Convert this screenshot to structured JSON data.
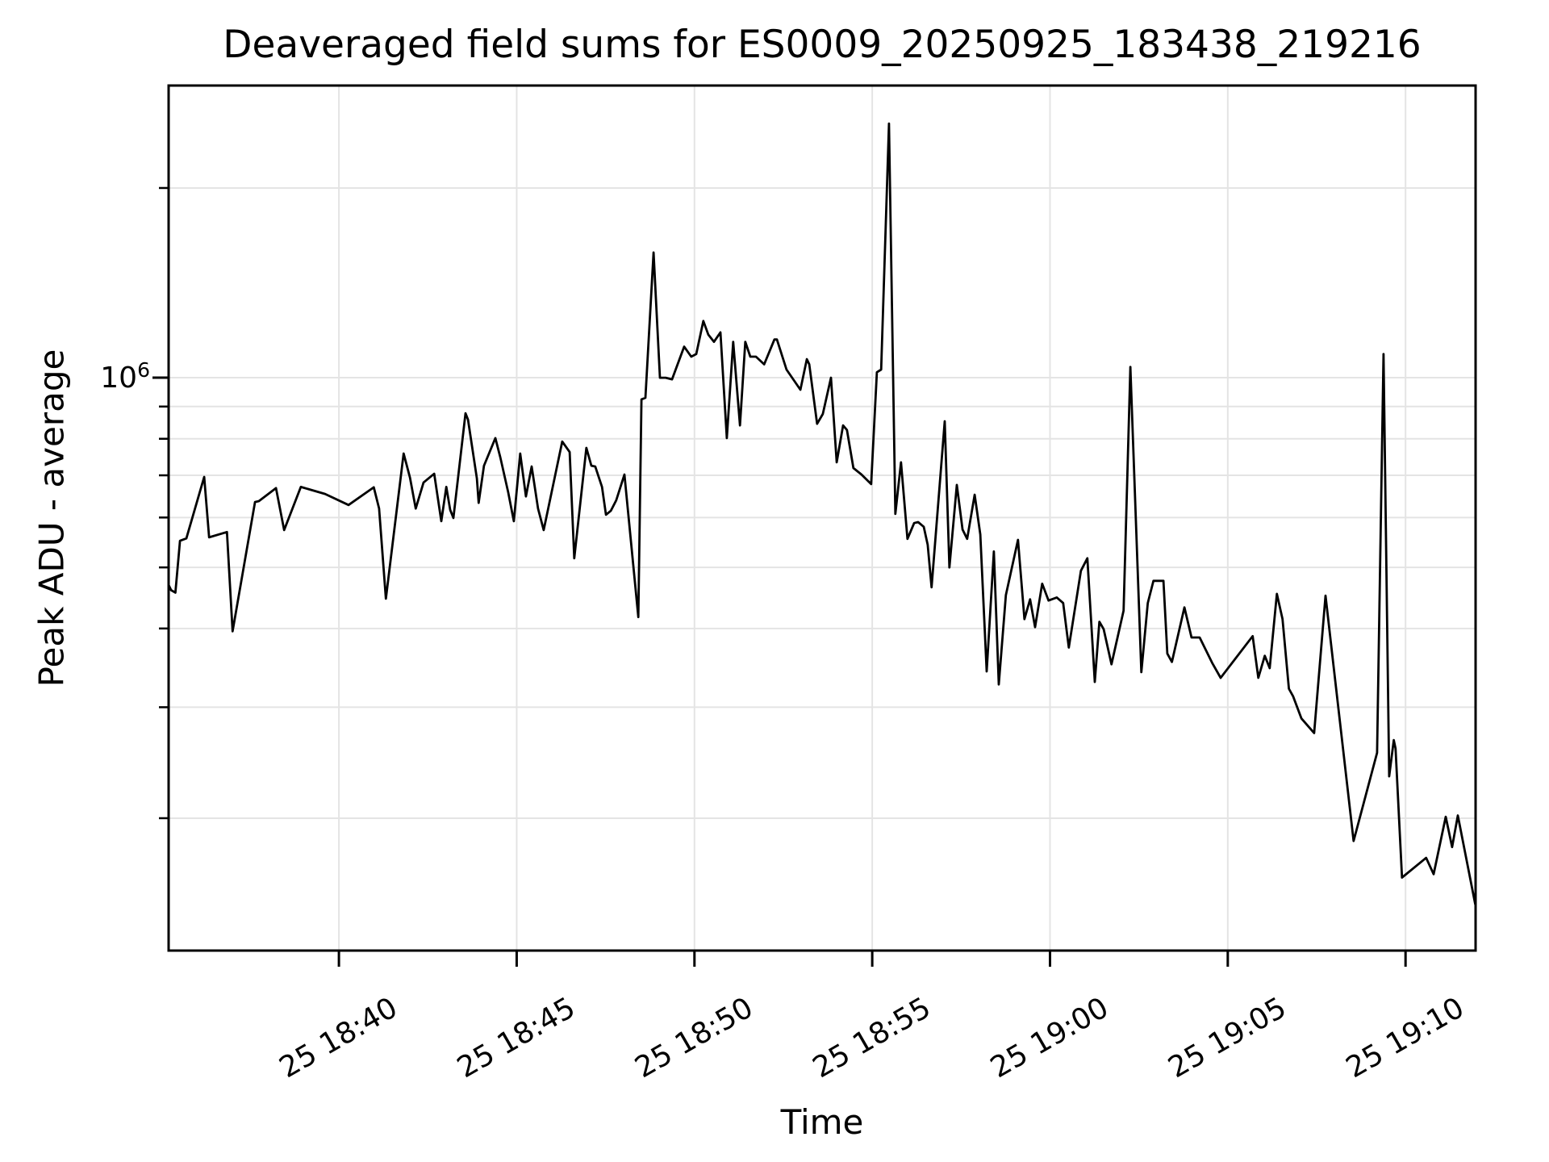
{
  "title": "Deaveraged field sums for ES0009_20250925_183438_219216",
  "axes": {
    "xlabel": "Time",
    "ylabel": "Peak ADU - average",
    "x_unit": "minutes after 2025-09-25 18:35:00",
    "xlim": [
      0.21,
      36.97
    ],
    "y_scale": "log",
    "ylim": [
      123300,
      2908000
    ],
    "x_ticks": [
      {
        "t": 5,
        "label": "25 18:40"
      },
      {
        "t": 10,
        "label": "25 18:45"
      },
      {
        "t": 15,
        "label": "25 18:50"
      },
      {
        "t": 20,
        "label": "25 18:55"
      },
      {
        "t": 25,
        "label": "25 19:00"
      },
      {
        "t": 30,
        "label": "25 19:05"
      },
      {
        "t": 35,
        "label": "25 19:10"
      }
    ],
    "y_major_tick": {
      "value": 1000000,
      "base": "10",
      "exp": "6"
    },
    "y_minor_ticks": [
      200000,
      300000,
      400000,
      500000,
      600000,
      700000,
      800000,
      900000,
      2000000
    ],
    "grid": "both"
  },
  "colors": {
    "line": "#000000",
    "grid": "#e4e4e4",
    "spine": "#000000",
    "background": "#ffffff"
  },
  "chart_data": {
    "type": "line",
    "title": "Deaveraged field sums for ES0009_20250925_183438_219216",
    "xlabel": "Time",
    "ylabel": "Peak ADU - average",
    "x_unit": "minutes after 2025-09-25 18:35:00",
    "y_scale": "log",
    "xlim": [
      0.21,
      36.97
    ],
    "ylim": [
      123300,
      2908000
    ],
    "legend": "none",
    "series": [
      {
        "name": "Peak ADU - average",
        "color": "#000000",
        "points": [
          [
            0.21,
            469000
          ],
          [
            0.28,
            460000
          ],
          [
            0.4,
            456000
          ],
          [
            0.53,
            551000
          ],
          [
            0.71,
            556000
          ],
          [
            1.21,
            696000
          ],
          [
            1.35,
            558000
          ],
          [
            1.85,
            569000
          ],
          [
            2.01,
            396000
          ],
          [
            2.64,
            635000
          ],
          [
            2.75,
            637000
          ],
          [
            3.23,
            668000
          ],
          [
            3.46,
            573000
          ],
          [
            3.93,
            671000
          ],
          [
            4.61,
            654000
          ],
          [
            5.27,
            628000
          ],
          [
            5.98,
            670000
          ],
          [
            6.13,
            620000
          ],
          [
            6.32,
            446000
          ],
          [
            6.82,
            758000
          ],
          [
            7.0,
            694000
          ],
          [
            7.16,
            620000
          ],
          [
            7.38,
            682000
          ],
          [
            7.68,
            704000
          ],
          [
            7.88,
            592000
          ],
          [
            8.02,
            671000
          ],
          [
            8.13,
            617000
          ],
          [
            8.22,
            599000
          ],
          [
            8.56,
            878000
          ],
          [
            8.63,
            858000
          ],
          [
            8.88,
            692000
          ],
          [
            8.93,
            633000
          ],
          [
            9.08,
            725000
          ],
          [
            9.4,
            802000
          ],
          [
            9.54,
            747000
          ],
          [
            9.76,
            658000
          ],
          [
            9.92,
            592000
          ],
          [
            10.1,
            758000
          ],
          [
            10.26,
            648000
          ],
          [
            10.42,
            723000
          ],
          [
            10.6,
            620000
          ],
          [
            10.76,
            573000
          ],
          [
            11.28,
            792000
          ],
          [
            11.49,
            762000
          ],
          [
            11.62,
            517000
          ],
          [
            11.96,
            774000
          ],
          [
            12.1,
            725000
          ],
          [
            12.21,
            723000
          ],
          [
            12.4,
            671000
          ],
          [
            12.51,
            606000
          ],
          [
            12.65,
            615000
          ],
          [
            12.8,
            639000
          ],
          [
            13.03,
            702000
          ],
          [
            13.42,
            417000
          ],
          [
            13.51,
            924000
          ],
          [
            13.62,
            929000
          ],
          [
            13.85,
            1580000
          ],
          [
            14.03,
            1000000
          ],
          [
            14.19,
            1000000
          ],
          [
            14.37,
            994000
          ],
          [
            14.71,
            1120000
          ],
          [
            14.76,
            1110000
          ],
          [
            14.91,
            1080000
          ],
          [
            15.05,
            1090000
          ],
          [
            15.25,
            1230000
          ],
          [
            15.39,
            1170000
          ],
          [
            15.55,
            1140000
          ],
          [
            15.73,
            1180000
          ],
          [
            15.91,
            802000
          ],
          [
            16.09,
            1140000
          ],
          [
            16.28,
            840000
          ],
          [
            16.43,
            1140000
          ],
          [
            16.57,
            1080000
          ],
          [
            16.73,
            1080000
          ],
          [
            16.96,
            1050000
          ],
          [
            17.25,
            1150000
          ],
          [
            17.32,
            1150000
          ],
          [
            17.59,
            1030000
          ],
          [
            17.98,
            957000
          ],
          [
            18.16,
            1070000
          ],
          [
            18.23,
            1050000
          ],
          [
            18.45,
            845000
          ],
          [
            18.61,
            876000
          ],
          [
            18.84,
            1000000
          ],
          [
            19.0,
            734000
          ],
          [
            19.18,
            840000
          ],
          [
            19.29,
            826000
          ],
          [
            19.47,
            719000
          ],
          [
            19.7,
            702000
          ],
          [
            19.97,
            678000
          ],
          [
            20.13,
            1020000
          ],
          [
            20.25,
            1030000
          ],
          [
            20.47,
            2530000
          ],
          [
            20.65,
            608000
          ],
          [
            20.81,
            734000
          ],
          [
            20.99,
            555000
          ],
          [
            21.18,
            588000
          ],
          [
            21.29,
            590000
          ],
          [
            21.45,
            580000
          ],
          [
            21.56,
            543000
          ],
          [
            21.67,
            465000
          ],
          [
            22.04,
            853000
          ],
          [
            22.17,
            500000
          ],
          [
            22.38,
            676000
          ],
          [
            22.54,
            574000
          ],
          [
            22.67,
            555000
          ],
          [
            22.88,
            652000
          ],
          [
            23.04,
            564000
          ],
          [
            23.22,
            342000
          ],
          [
            23.42,
            530000
          ],
          [
            23.56,
            326000
          ],
          [
            23.76,
            452000
          ],
          [
            24.1,
            553000
          ],
          [
            24.28,
            414000
          ],
          [
            24.44,
            445000
          ],
          [
            24.58,
            402000
          ],
          [
            24.78,
            471000
          ],
          [
            24.96,
            443000
          ],
          [
            25.19,
            448000
          ],
          [
            25.37,
            439000
          ],
          [
            25.53,
            373000
          ],
          [
            25.87,
            494000
          ],
          [
            26.05,
            517000
          ],
          [
            26.26,
            329000
          ],
          [
            26.39,
            410000
          ],
          [
            26.51,
            399000
          ],
          [
            26.73,
            351000
          ],
          [
            27.07,
            427000
          ],
          [
            27.26,
            1040000
          ],
          [
            27.57,
            341000
          ],
          [
            27.75,
            439000
          ],
          [
            27.91,
            476000
          ],
          [
            28.19,
            476000
          ],
          [
            28.3,
            365000
          ],
          [
            28.43,
            354000
          ],
          [
            28.78,
            432000
          ],
          [
            28.98,
            387000
          ],
          [
            29.21,
            387000
          ],
          [
            29.57,
            352000
          ],
          [
            29.8,
            334000
          ],
          [
            30.7,
            389000
          ],
          [
            30.86,
            334000
          ],
          [
            31.04,
            362000
          ],
          [
            31.18,
            346000
          ],
          [
            31.38,
            454000
          ],
          [
            31.54,
            414000
          ],
          [
            31.72,
            321000
          ],
          [
            31.84,
            312000
          ],
          [
            32.07,
            288000
          ],
          [
            32.43,
            273000
          ],
          [
            32.75,
            451000
          ],
          [
            32.97,
            351000
          ],
          [
            33.54,
            184000
          ],
          [
            34.2,
            254000
          ],
          [
            34.38,
            1090000
          ],
          [
            34.54,
            233000
          ],
          [
            34.67,
            266000
          ],
          [
            34.72,
            258000
          ],
          [
            34.9,
            161000
          ],
          [
            35.58,
            173000
          ],
          [
            35.79,
            163000
          ],
          [
            36.13,
            201000
          ],
          [
            36.31,
            180000
          ],
          [
            36.47,
            202000
          ],
          [
            36.96,
            146000
          ]
        ]
      }
    ]
  }
}
